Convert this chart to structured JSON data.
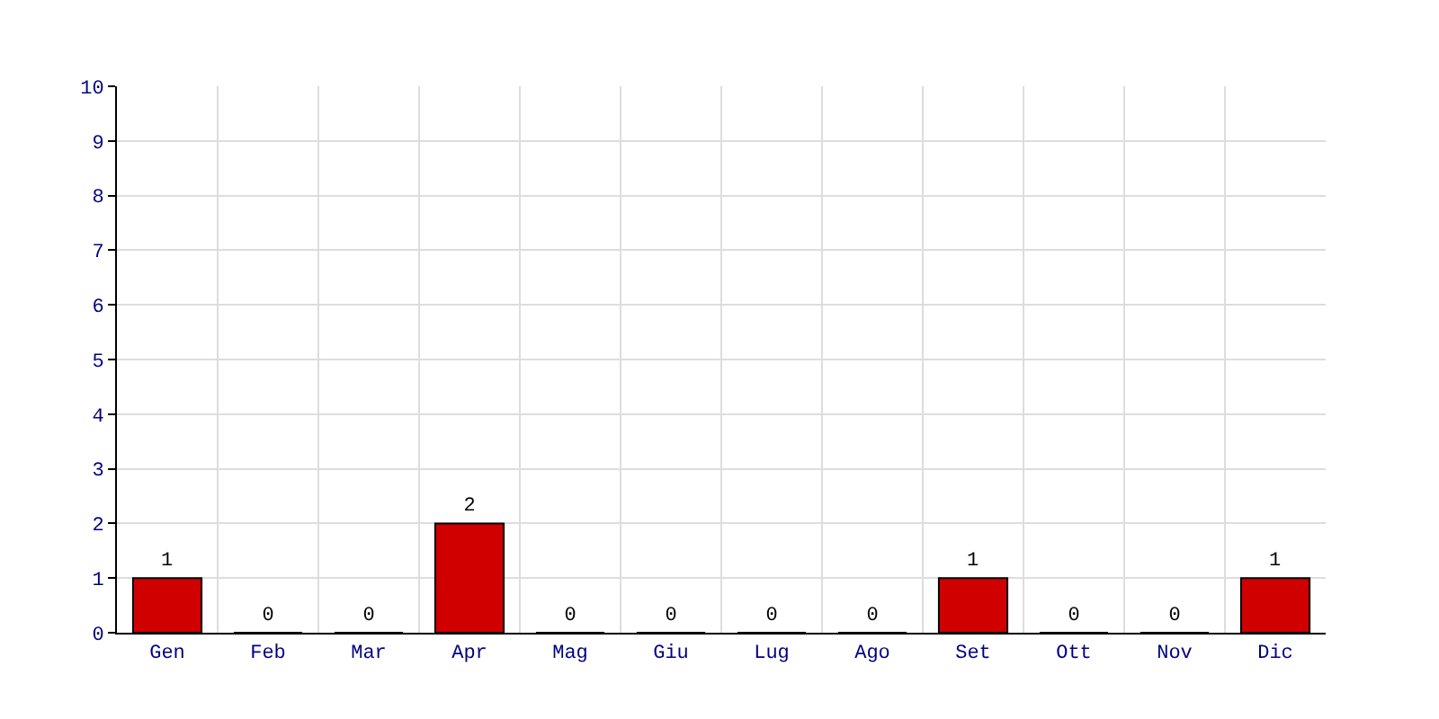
{
  "chart_data": {
    "type": "bar",
    "categories": [
      "Gen",
      "Feb",
      "Mar",
      "Apr",
      "Mag",
      "Giu",
      "Lug",
      "Ago",
      "Set",
      "Ott",
      "Nov",
      "Dic"
    ],
    "values": [
      1,
      0,
      0,
      2,
      0,
      0,
      0,
      0,
      1,
      0,
      0,
      1
    ],
    "color": "#d00000",
    "ylim": [
      0,
      10
    ],
    "yticks": [
      0,
      1,
      2,
      3,
      4,
      5,
      6,
      7,
      8,
      9,
      10
    ],
    "grid": true,
    "data_labels": true
  }
}
